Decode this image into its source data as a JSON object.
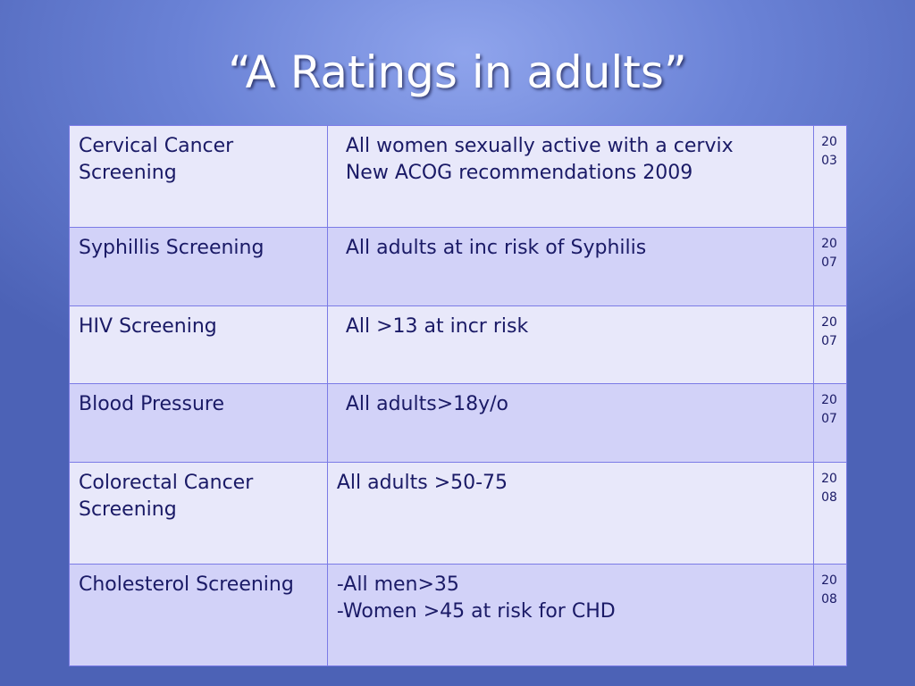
{
  "title": "“A Ratings in adults”",
  "table": {
    "rows": [
      {
        "name": "Cervical Cancer Screening",
        "description": [
          "All women sexually active with a cervix",
          "New ACOG recommendations 2009"
        ],
        "year": "2003"
      },
      {
        "name": "Syphillis Screening",
        "description": [
          "All adults at inc risk of Syphilis"
        ],
        "year": "2007"
      },
      {
        "name": "HIV Screening",
        "description": [
          "All >13 at incr risk"
        ],
        "year": "2007"
      },
      {
        "name": "Blood Pressure",
        "description": [
          "All adults>18y/o"
        ],
        "year": "2007"
      },
      {
        "name": "Colorectal Cancer Screening",
        "description": [
          "All adults >50-75"
        ],
        "year": "2008"
      },
      {
        "name": "Cholesterol Screening",
        "description": [
          "-All men>35",
          "-Women >45 at risk for CHD"
        ],
        "year": "2008"
      }
    ]
  }
}
